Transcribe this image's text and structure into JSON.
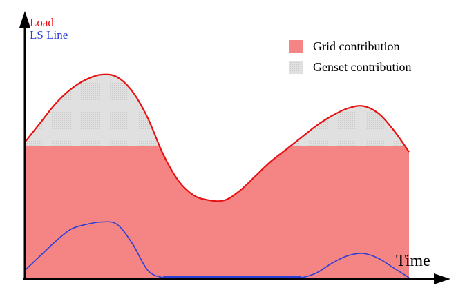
{
  "chart_data": {
    "type": "area",
    "xlabel": "Time",
    "ylabel_lines": [
      {
        "text": "Load",
        "color": "#e81010"
      },
      {
        "text": "LS Line",
        "color": "#2a3fd8"
      }
    ],
    "threshold": 0.545,
    "ylim": [
      0,
      1
    ],
    "load": {
      "color": "#e81010",
      "x": [
        0,
        0.04,
        0.08,
        0.12,
        0.16,
        0.2,
        0.24,
        0.28,
        0.32,
        0.36,
        0.4,
        0.44,
        0.48,
        0.52,
        0.56,
        0.6,
        0.64,
        0.68,
        0.72,
        0.76,
        0.8,
        0.84,
        0.88,
        0.92,
        0.96,
        1.0
      ],
      "y": [
        0.56,
        0.64,
        0.72,
        0.78,
        0.82,
        0.84,
        0.83,
        0.77,
        0.66,
        0.51,
        0.4,
        0.34,
        0.32,
        0.32,
        0.36,
        0.42,
        0.48,
        0.53,
        0.58,
        0.63,
        0.67,
        0.7,
        0.71,
        0.68,
        0.61,
        0.52
      ]
    },
    "ls_line": {
      "color": "#2a3fd8",
      "x": [
        0,
        0.04,
        0.08,
        0.12,
        0.16,
        0.2,
        0.24,
        0.28,
        0.32,
        0.36,
        0.4,
        0.44,
        0.48,
        0.52,
        0.56,
        0.6,
        0.64,
        0.68,
        0.72,
        0.76,
        0.8,
        0.84,
        0.88,
        0.92,
        0.96,
        1.0
      ],
      "y": [
        0.03,
        0.09,
        0.15,
        0.2,
        0.22,
        0.23,
        0.22,
        0.14,
        0.03,
        0.0,
        0.0,
        0.0,
        0.0,
        0.0,
        0.0,
        0.0,
        0.0,
        0.0,
        0.0,
        0.02,
        0.06,
        0.09,
        0.1,
        0.08,
        0.04,
        0.0
      ]
    },
    "legend": [
      {
        "label": "Grid contribution",
        "color": "#f58585"
      },
      {
        "label": "Genset contribution",
        "color": "#d8d8d8"
      }
    ],
    "legend_position": "top-right",
    "grid": false
  }
}
